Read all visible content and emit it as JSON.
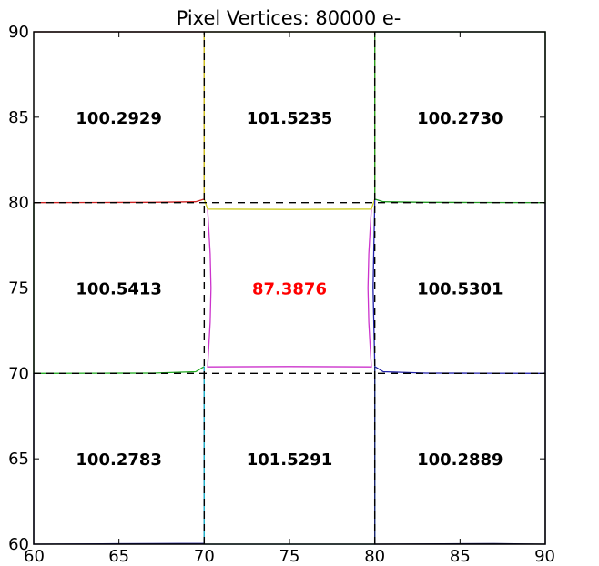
{
  "chart_data": {
    "type": "scatter",
    "title": "Pixel Vertices: 80000 e-",
    "xlabel": "",
    "ylabel": "",
    "xlim": [
      60,
      90
    ],
    "ylim": [
      60,
      90
    ],
    "x_ticks": [
      60,
      65,
      70,
      75,
      80,
      85,
      90
    ],
    "y_ticks": [
      60,
      65,
      70,
      75,
      80,
      85,
      90
    ],
    "grid": false,
    "nominal_pixel_boundaries": {
      "x": [
        70,
        80
      ],
      "y": [
        70,
        80
      ],
      "style": "dashed",
      "color": "#000000"
    },
    "pixel_areas": [
      {
        "x": 65,
        "y": 85,
        "label": "100.2929",
        "color": "#000000"
      },
      {
        "x": 75,
        "y": 85,
        "label": "101.5235",
        "color": "#000000"
      },
      {
        "x": 85,
        "y": 85,
        "label": "100.2730",
        "color": "#000000"
      },
      {
        "x": 65,
        "y": 75,
        "label": "100.5413",
        "color": "#000000"
      },
      {
        "x": 75,
        "y": 75,
        "label": "87.3876",
        "color": "#ff0000"
      },
      {
        "x": 85,
        "y": 75,
        "label": "100.5301",
        "color": "#000000"
      },
      {
        "x": 65,
        "y": 65,
        "label": "100.2783",
        "color": "#000000"
      },
      {
        "x": 75,
        "y": 65,
        "label": "101.5291",
        "color": "#000000"
      },
      {
        "x": 85,
        "y": 65,
        "label": "100.2889",
        "color": "#000000"
      }
    ],
    "series": [
      {
        "color": "#cc2222",
        "points": [
          [
            60,
            90
          ],
          [
            70,
            90
          ],
          [
            70,
            80.2
          ],
          [
            69.5,
            80.05
          ],
          [
            67,
            80.02
          ],
          [
            64,
            80.01
          ],
          [
            60,
            80
          ]
        ]
      },
      {
        "color": "#cccc22",
        "points": [
          [
            70,
            90
          ],
          [
            80,
            90
          ],
          [
            80,
            80.2
          ],
          [
            79.8,
            79.62
          ],
          [
            75,
            79.6
          ],
          [
            70.2,
            79.62
          ],
          [
            70,
            80.2
          ],
          [
            70,
            90
          ]
        ]
      },
      {
        "color": "#229922",
        "points": [
          [
            80,
            90
          ],
          [
            90,
            90
          ],
          [
            90,
            80
          ],
          [
            86,
            80.01
          ],
          [
            83,
            80.02
          ],
          [
            80.5,
            80.05
          ],
          [
            80,
            80.2
          ],
          [
            80,
            90
          ]
        ]
      },
      {
        "color": "#22aa22",
        "points": [
          [
            60,
            80
          ],
          [
            60,
            70
          ],
          [
            64,
            70.01
          ],
          [
            67,
            70.02
          ],
          [
            69.5,
            70.1
          ],
          [
            70,
            70.4
          ]
        ]
      },
      {
        "color": "#cc33cc",
        "points": [
          [
            70.2,
            79.62
          ],
          [
            70.35,
            77
          ],
          [
            70.4,
            75
          ],
          [
            70.35,
            73
          ],
          [
            70.2,
            70.38
          ],
          [
            75,
            70.4
          ],
          [
            79.8,
            70.38
          ],
          [
            79.65,
            73
          ],
          [
            79.6,
            75
          ],
          [
            79.65,
            77
          ],
          [
            79.8,
            79.62
          ]
        ]
      },
      {
        "color": "#2222aa",
        "points": [
          [
            80,
            80.2
          ],
          [
            79.9,
            75
          ],
          [
            80,
            70.4
          ],
          [
            80.5,
            70.1
          ],
          [
            83,
            70.02
          ],
          [
            86,
            70.01
          ],
          [
            90,
            70
          ],
          [
            90,
            80
          ]
        ]
      },
      {
        "color": "#222299",
        "points": [
          [
            60,
            70
          ],
          [
            60,
            60
          ],
          [
            64,
            60.02
          ],
          [
            67,
            60.03
          ],
          [
            70,
            60.05
          ],
          [
            70,
            70.4
          ]
        ]
      },
      {
        "color": "#22bbcc",
        "points": [
          [
            70,
            70.4
          ],
          [
            70,
            60
          ],
          [
            80,
            60
          ],
          [
            80,
            70.4
          ]
        ]
      },
      {
        "color": "#1a1a66",
        "points": [
          [
            80,
            70.4
          ],
          [
            80,
            60
          ],
          [
            84,
            60.02
          ],
          [
            87,
            60.03
          ],
          [
            90,
            60
          ],
          [
            90,
            70
          ]
        ]
      }
    ]
  }
}
